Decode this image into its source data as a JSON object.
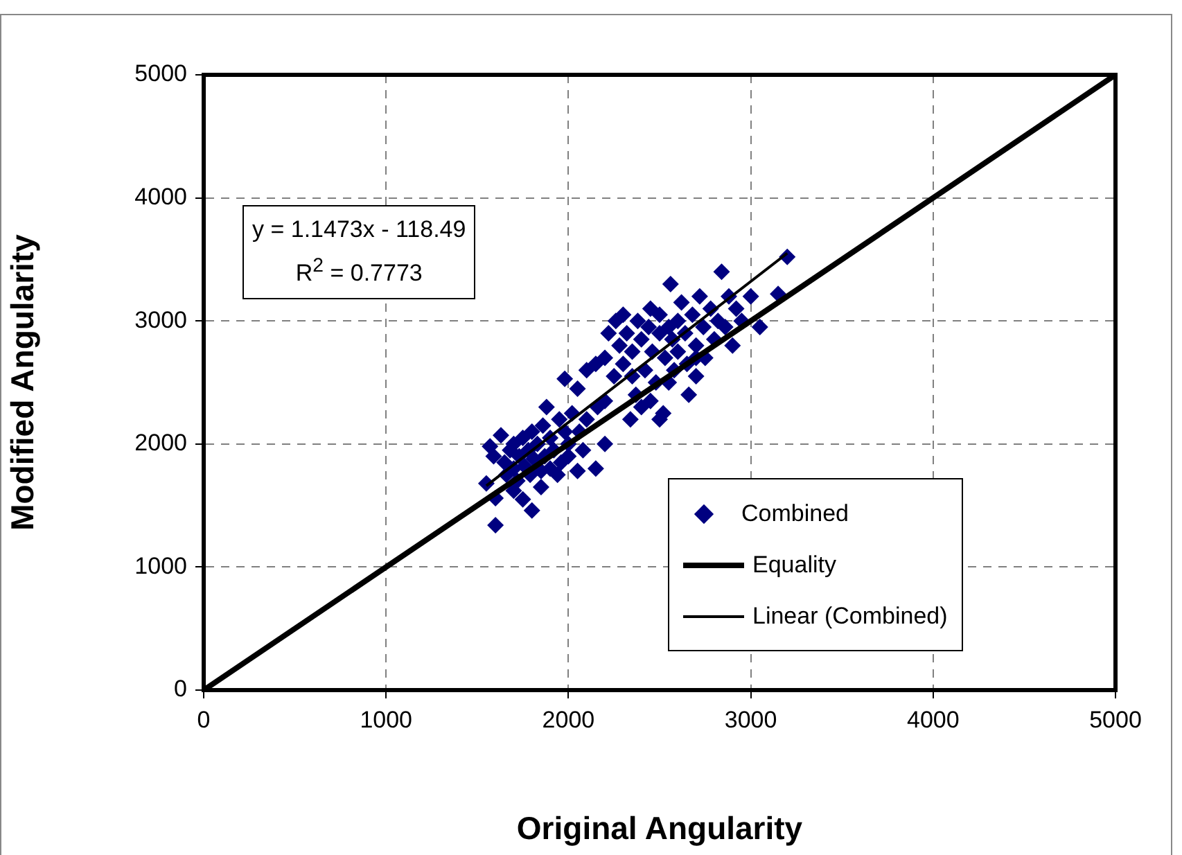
{
  "chart_data": {
    "type": "scatter",
    "xlabel": "Original Angularity",
    "ylabel": "Modified Angularity",
    "xlim": [
      0,
      5000
    ],
    "ylim": [
      0,
      5000
    ],
    "xticks": [
      0,
      1000,
      2000,
      3000,
      4000,
      5000
    ],
    "yticks": [
      0,
      1000,
      2000,
      3000,
      4000,
      5000
    ],
    "grid": true,
    "legend": "bottom right",
    "annotations": [
      "y = 1.1473x - 118.49",
      "R$^{2}$ = 0.7773"
    ],
    "series": [
      {
        "name": "Combined",
        "type": "scatter",
        "marker": "diamond",
        "color": "#000080",
        "x": [
          1550,
          1570,
          1590,
          1600,
          1600,
          1630,
          1650,
          1660,
          1680,
          1700,
          1700,
          1720,
          1730,
          1750,
          1760,
          1780,
          1790,
          1800,
          1800,
          1810,
          1830,
          1850,
          1860,
          1870,
          1880,
          1900,
          1900,
          1920,
          1940,
          1950,
          1960,
          1980,
          2000,
          2000,
          2020,
          2050,
          2060,
          2080,
          2100,
          2150,
          2160,
          1980,
          2050,
          2100,
          2150,
          2200,
          2200,
          1700,
          1750,
          1850,
          2200,
          2220,
          2250,
          2260,
          2280,
          2300,
          2300,
          2320,
          2340,
          2350,
          2370,
          2380,
          2400,
          2400,
          2420,
          2440,
          2450,
          2460,
          2480,
          2500,
          2500,
          2520,
          2530,
          2550,
          2560,
          2570,
          2580,
          2600,
          2600,
          2620,
          2640,
          2650,
          2660,
          2680,
          2700,
          2700,
          2720,
          2740,
          2750,
          2780,
          2800,
          2820,
          2840,
          2860,
          2880,
          2900,
          2920,
          2950,
          3000,
          3050,
          3150,
          3200,
          2450,
          2500,
          2350,
          2700,
          2550
        ],
        "values": [
          1680,
          1980,
          1900,
          1340,
          1560,
          2070,
          1850,
          1750,
          1950,
          1800,
          2000,
          1700,
          1900,
          2050,
          1820,
          1950,
          1750,
          1460,
          2100,
          1880,
          2000,
          1780,
          2150,
          1900,
          2300,
          1800,
          2050,
          1950,
          1750,
          2200,
          1850,
          2100,
          1900,
          2000,
          2250,
          1780,
          2100,
          1950,
          2200,
          1800,
          2300,
          2530,
          2450,
          2600,
          2650,
          2000,
          2350,
          1620,
          1550,
          1650,
          2700,
          2900,
          2550,
          3000,
          2800,
          2650,
          3050,
          2900,
          2200,
          2750,
          2400,
          3000,
          2850,
          2300,
          2600,
          2950,
          3100,
          2750,
          2500,
          2900,
          3050,
          2250,
          2700,
          2950,
          3300,
          2850,
          2600,
          3000,
          2750,
          3150,
          2900,
          2650,
          2400,
          3050,
          2800,
          2550,
          3200,
          2950,
          2700,
          3100,
          2850,
          3000,
          3400,
          2950,
          3200,
          2800,
          3100,
          3000,
          3200,
          2950,
          3220,
          3520,
          2350,
          2200,
          2550,
          2700,
          2500
        ]
      },
      {
        "name": "Equality",
        "type": "line",
        "marker": "none",
        "color": "#000000",
        "x": [
          0,
          5000
        ],
        "values": [
          0,
          5000
        ]
      },
      {
        "name": "Linear (Combined)",
        "type": "line",
        "marker": "none",
        "color": "#000000",
        "x": [
          1550,
          3200
        ],
        "values": [
          1660,
          3550
        ]
      }
    ]
  }
}
